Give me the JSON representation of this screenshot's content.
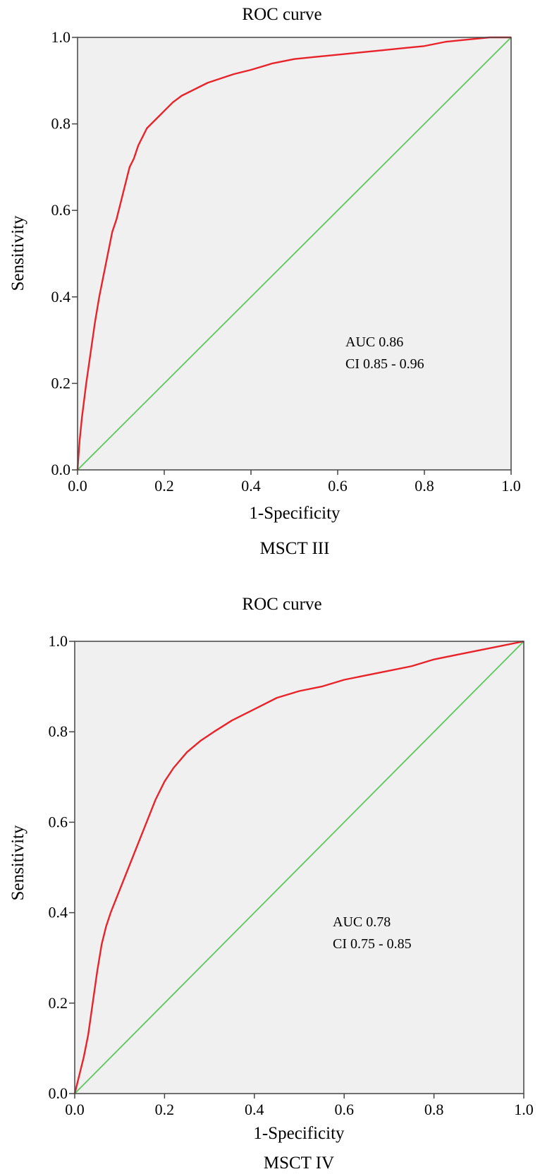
{
  "colors": {
    "plot_background": "#f0f0f0",
    "frame": "#444444",
    "roc_curve": "#e8232a",
    "reference_line": "#5cc85c"
  },
  "chart_data": [
    {
      "type": "line",
      "title": "ROC curve",
      "xlabel": "1-Specificity",
      "ylabel": "Sensitivity",
      "caption": "MSCT III",
      "xlim": [
        0,
        1
      ],
      "ylim": [
        0,
        1
      ],
      "x_ticks": [
        "0.0",
        "0.2",
        "0.4",
        "0.6",
        "0.8",
        "1.0"
      ],
      "y_ticks": [
        "0.0",
        "0.2",
        "0.4",
        "0.6",
        "0.8",
        "1.0"
      ],
      "grid": false,
      "annotations": [
        "AUC 0.86",
        "CI 0.85 - 0.96"
      ],
      "series": [
        {
          "x": [
            0.0,
            0.002,
            0.005,
            0.01,
            0.02,
            0.03,
            0.04,
            0.05,
            0.06,
            0.07,
            0.08,
            0.09,
            0.1,
            0.11,
            0.12,
            0.13,
            0.14,
            0.15,
            0.16,
            0.17,
            0.18,
            0.19,
            0.2,
            0.22,
            0.24,
            0.26,
            0.28,
            0.3,
            0.33,
            0.36,
            0.4,
            0.45,
            0.5,
            0.55,
            0.6,
            0.65,
            0.7,
            0.75,
            0.8,
            0.85,
            0.9,
            0.95,
            1.0
          ],
          "y": [
            0.0,
            0.03,
            0.07,
            0.12,
            0.2,
            0.27,
            0.34,
            0.4,
            0.45,
            0.5,
            0.55,
            0.58,
            0.62,
            0.66,
            0.7,
            0.72,
            0.75,
            0.77,
            0.79,
            0.8,
            0.81,
            0.82,
            0.83,
            0.85,
            0.865,
            0.875,
            0.885,
            0.895,
            0.905,
            0.915,
            0.925,
            0.94,
            0.95,
            0.955,
            0.96,
            0.965,
            0.97,
            0.975,
            0.98,
            0.99,
            0.995,
            1.0,
            1.0
          ]
        },
        {
          "x": [
            0.0,
            1.0
          ],
          "y": [
            0.0,
            1.0
          ]
        }
      ]
    },
    {
      "type": "line",
      "title": "ROC curve",
      "xlabel": "1-Specificity",
      "ylabel": "Sensitivity",
      "caption": "MSCT IV",
      "xlim": [
        0,
        1
      ],
      "ylim": [
        0,
        1
      ],
      "x_ticks": [
        "0.0",
        "0.2",
        "0.4",
        "0.6",
        "0.8",
        "1.0"
      ],
      "y_ticks": [
        "0.0",
        "0.2",
        "0.4",
        "0.6",
        "0.8",
        "1.0"
      ],
      "grid": false,
      "annotations": [
        "AUC 0.78",
        "CI 0.75 - 0.85"
      ],
      "series": [
        {
          "x": [
            0.0,
            0.005,
            0.01,
            0.02,
            0.03,
            0.04,
            0.05,
            0.06,
            0.07,
            0.08,
            0.1,
            0.12,
            0.14,
            0.16,
            0.18,
            0.2,
            0.22,
            0.25,
            0.28,
            0.31,
            0.35,
            0.4,
            0.45,
            0.5,
            0.55,
            0.6,
            0.65,
            0.7,
            0.75,
            0.8,
            0.85,
            0.9,
            0.95,
            1.0
          ],
          "y": [
            0.0,
            0.02,
            0.04,
            0.08,
            0.13,
            0.2,
            0.27,
            0.33,
            0.37,
            0.4,
            0.45,
            0.5,
            0.55,
            0.6,
            0.65,
            0.69,
            0.72,
            0.755,
            0.78,
            0.8,
            0.825,
            0.85,
            0.875,
            0.89,
            0.9,
            0.915,
            0.925,
            0.935,
            0.945,
            0.96,
            0.97,
            0.98,
            0.99,
            1.0
          ]
        },
        {
          "x": [
            0.0,
            1.0
          ],
          "y": [
            0.0,
            1.0
          ]
        }
      ]
    }
  ]
}
